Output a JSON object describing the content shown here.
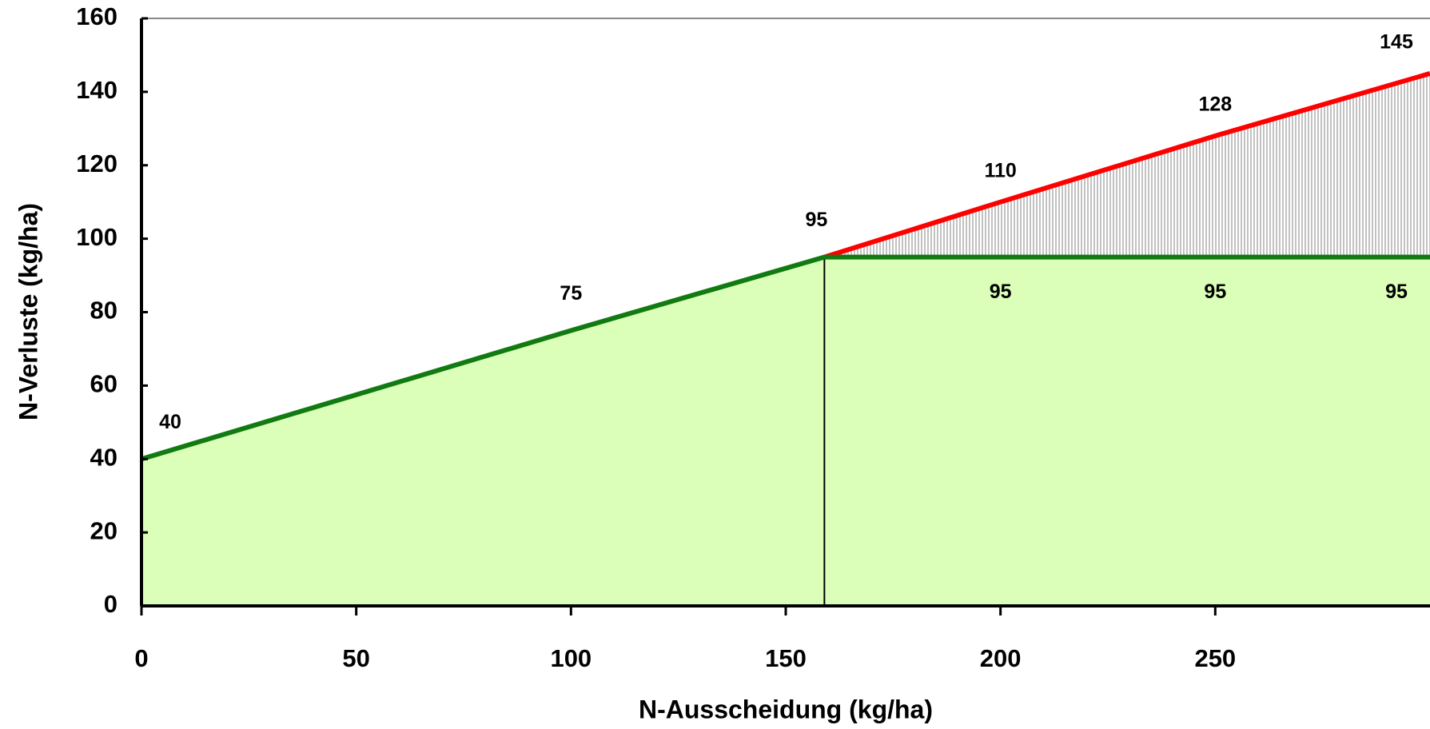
{
  "chart_data": {
    "type": "line",
    "x_label": "N-Ausscheidung (kg/ha)",
    "y_label": "N-Verluste (kg/ha)",
    "xlim": [
      0,
      300
    ],
    "ylim": [
      0,
      160
    ],
    "xticks": [
      0,
      50,
      100,
      150,
      200,
      250
    ],
    "yticks": [
      0,
      20,
      40,
      60,
      80,
      100,
      120,
      140,
      160
    ],
    "fill_color": "#dbffb8",
    "hatch_color": "#999999",
    "series": [
      {
        "color": "#117a11",
        "x": [
          0,
          100,
          159,
          200,
          250,
          300
        ],
        "values": [
          40,
          75,
          95,
          95,
          95,
          95
        ]
      },
      {
        "color": "#ff0000",
        "x": [
          159,
          200,
          250,
          300
        ],
        "values": [
          95,
          110,
          128,
          145
        ]
      }
    ]
  }
}
